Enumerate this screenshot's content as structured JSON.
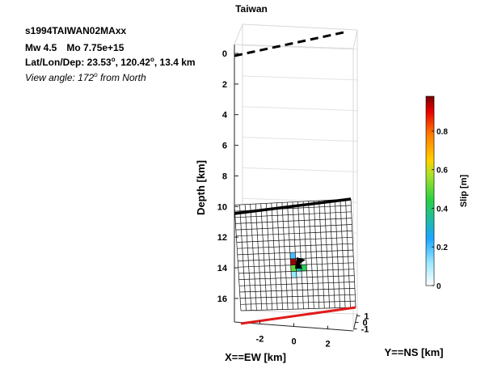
{
  "chart_data": {
    "type": "heatmap",
    "title": "Taiwan",
    "event_id": "s1994TAIWAN02MAxx",
    "magnitude": "Mw 4.5",
    "moment": "Mo 7.75e+15",
    "location": {
      "prefix": "Lat/Lon/Dep: ",
      "lat": "23.53",
      "lon": "120.42",
      "depth": "13.4 km"
    },
    "view_angle": {
      "prefix": "View angle: ",
      "value": "172",
      "suffix": " from North"
    },
    "degree_mark": "o",
    "axes": {
      "z": {
        "label": "Depth [km]",
        "ticks": [
          "0",
          "2",
          "4",
          "6",
          "8",
          "10",
          "12",
          "14",
          "16"
        ],
        "range": [
          0,
          16.8
        ],
        "reversed": true
      },
      "x": {
        "label": "X==EW [km]",
        "ticks": [
          "-2",
          "0",
          "2"
        ],
        "range": [
          -3.5,
          3.5
        ]
      },
      "y": {
        "label": "Y==NS [km]",
        "ticks": [
          "1",
          "0",
          "-1"
        ],
        "range": [
          -1.3,
          1.3
        ]
      }
    },
    "grid": true,
    "fault_plane": {
      "top_depth_km": 9.9,
      "bottom_depth_km": 16.8,
      "rows": 17,
      "cols": 22
    },
    "slip_patches": [
      {
        "row": 8,
        "col": 10,
        "slip": 0.2
      },
      {
        "row": 9,
        "col": 10,
        "slip": 0.95
      },
      {
        "row": 10,
        "col": 10,
        "slip": 0.5
      },
      {
        "row": 10,
        "col": 11,
        "slip": 0.35
      },
      {
        "row": 10,
        "col": 12,
        "slip": 0.42
      },
      {
        "row": 11,
        "col": 10,
        "slip": 0.12
      },
      {
        "row": 11,
        "col": 11,
        "slip": 0.05
      }
    ],
    "colorbar": {
      "label": "Slip [m]",
      "ticks": [
        "0",
        "0.2",
        "0.4",
        "0.6",
        "0.8"
      ],
      "range": [
        0,
        0.98
      ]
    },
    "colors": {
      "top_edge": "#000000",
      "bottom_edge": "#e11b1b",
      "grid": "#dcdcdc",
      "hypocenter": "#000000"
    }
  }
}
